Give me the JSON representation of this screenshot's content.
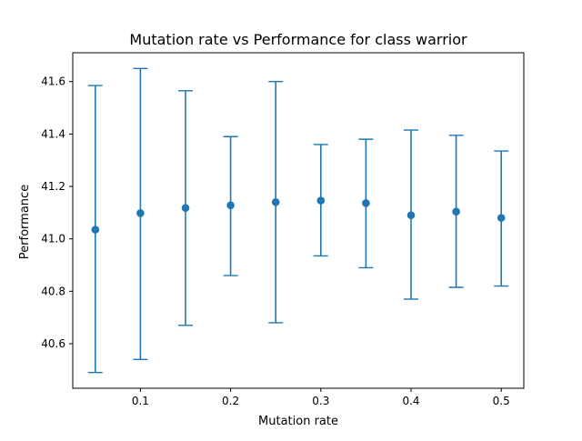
{
  "chart_data": {
    "type": "scatter",
    "title": "Mutation rate vs Performance for class warrior",
    "xlabel": "Mutation rate",
    "ylabel": "Performance",
    "xlim": [
      0.025,
      0.525
    ],
    "ylim": [
      40.43,
      41.71
    ],
    "xticks": [
      0.1,
      0.2,
      0.3,
      0.4,
      0.5
    ],
    "xtick_labels": [
      "0.1",
      "0.2",
      "0.3",
      "0.4",
      "0.5"
    ],
    "yticks": [
      40.6,
      40.8,
      41.0,
      41.2,
      41.4,
      41.6
    ],
    "ytick_labels": [
      "40.6",
      "40.8",
      "41.0",
      "41.2",
      "41.4",
      "41.6"
    ],
    "grid": false,
    "color": "#1f77b4",
    "series": [
      {
        "x": [
          0.05,
          0.1,
          0.15,
          0.2,
          0.25,
          0.3,
          0.35,
          0.4,
          0.45,
          0.5
        ],
        "y": [
          41.035,
          41.098,
          41.118,
          41.128,
          41.14,
          41.146,
          41.136,
          41.09,
          41.104,
          41.08
        ],
        "yerr_low": [
          40.49,
          40.54,
          40.67,
          40.86,
          40.68,
          40.935,
          40.89,
          40.77,
          40.815,
          40.82
        ],
        "yerr_high": [
          41.585,
          41.65,
          41.565,
          41.39,
          41.6,
          41.36,
          41.38,
          41.415,
          41.395,
          41.335
        ]
      }
    ]
  }
}
